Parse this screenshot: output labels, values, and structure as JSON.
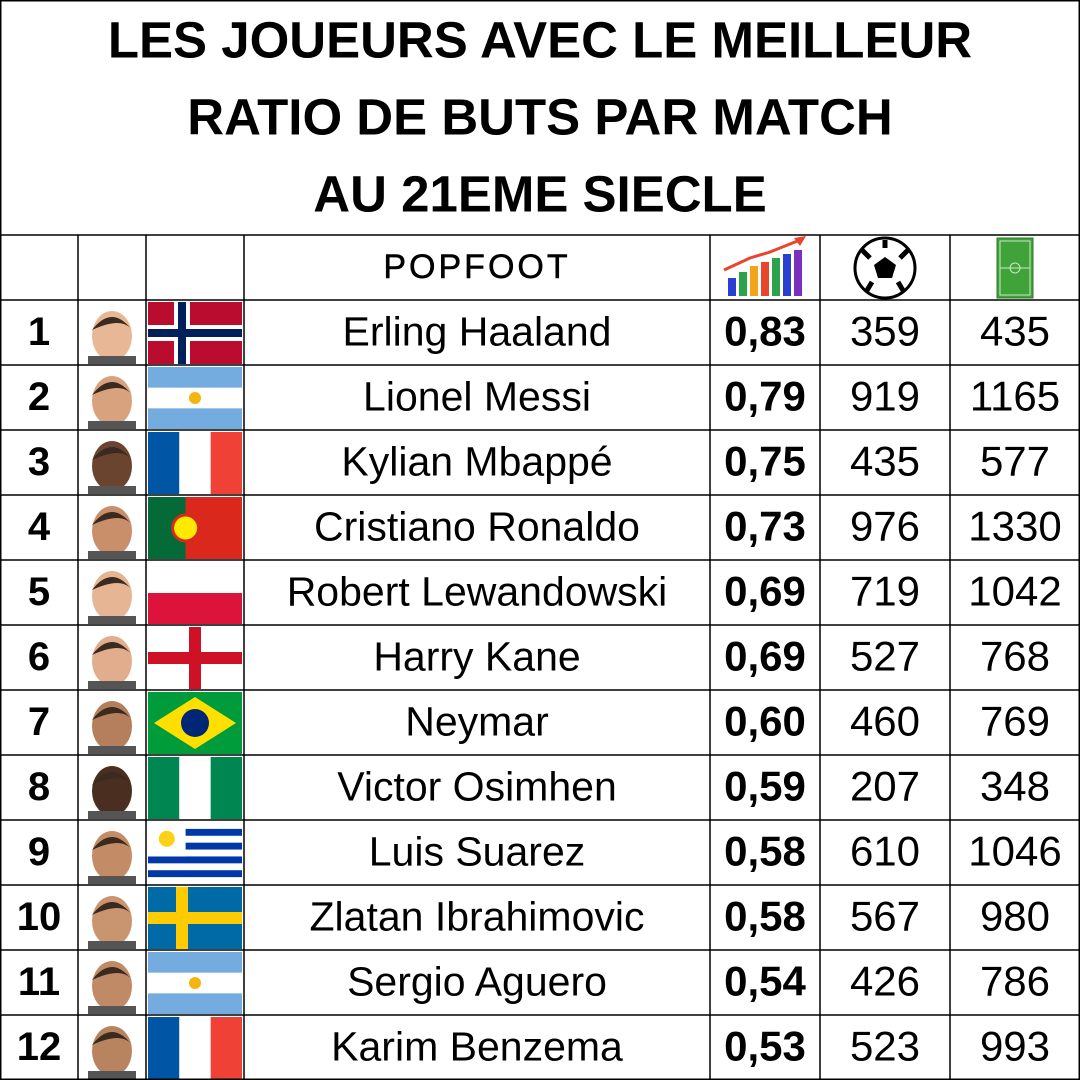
{
  "title": [
    "LES JOUEURS AVEC LE MEILLEUR",
    "RATIO DE BUTS PAR MATCH",
    "AU 21EME SIECLE"
  ],
  "brand": "POPFOOT",
  "table": {
    "rows": [
      [
        "1",
        "Erling Haaland",
        "0,83",
        "359",
        "435"
      ],
      [
        "2",
        "Lionel Messi",
        "0,79",
        "919",
        "1165"
      ],
      [
        "3",
        "Kylian Mbappé",
        "0,75",
        "435",
        "577"
      ],
      [
        "4",
        "Cristiano Ronaldo",
        "0,73",
        "976",
        "1330"
      ],
      [
        "5",
        "Robert Lewandowski",
        "0,69",
        "719",
        "1042"
      ],
      [
        "6",
        "Harry Kane",
        "0,69",
        "527",
        "768"
      ],
      [
        "7",
        "Neymar",
        "0,60",
        "460",
        "769"
      ],
      [
        "8",
        "Victor Osimhen",
        "0,59",
        "207",
        "348"
      ],
      [
        "9",
        "Luis Suarez",
        "0,58",
        "610",
        "1046"
      ],
      [
        "10",
        "Zlatan Ibrahimovic",
        "0,58",
        "567",
        "980"
      ],
      [
        "11",
        "Sergio Aguero",
        "0,54",
        "426",
        "786"
      ],
      [
        "12",
        "Karim Benzema",
        "0,53",
        "523",
        "993"
      ]
    ]
  }
}
